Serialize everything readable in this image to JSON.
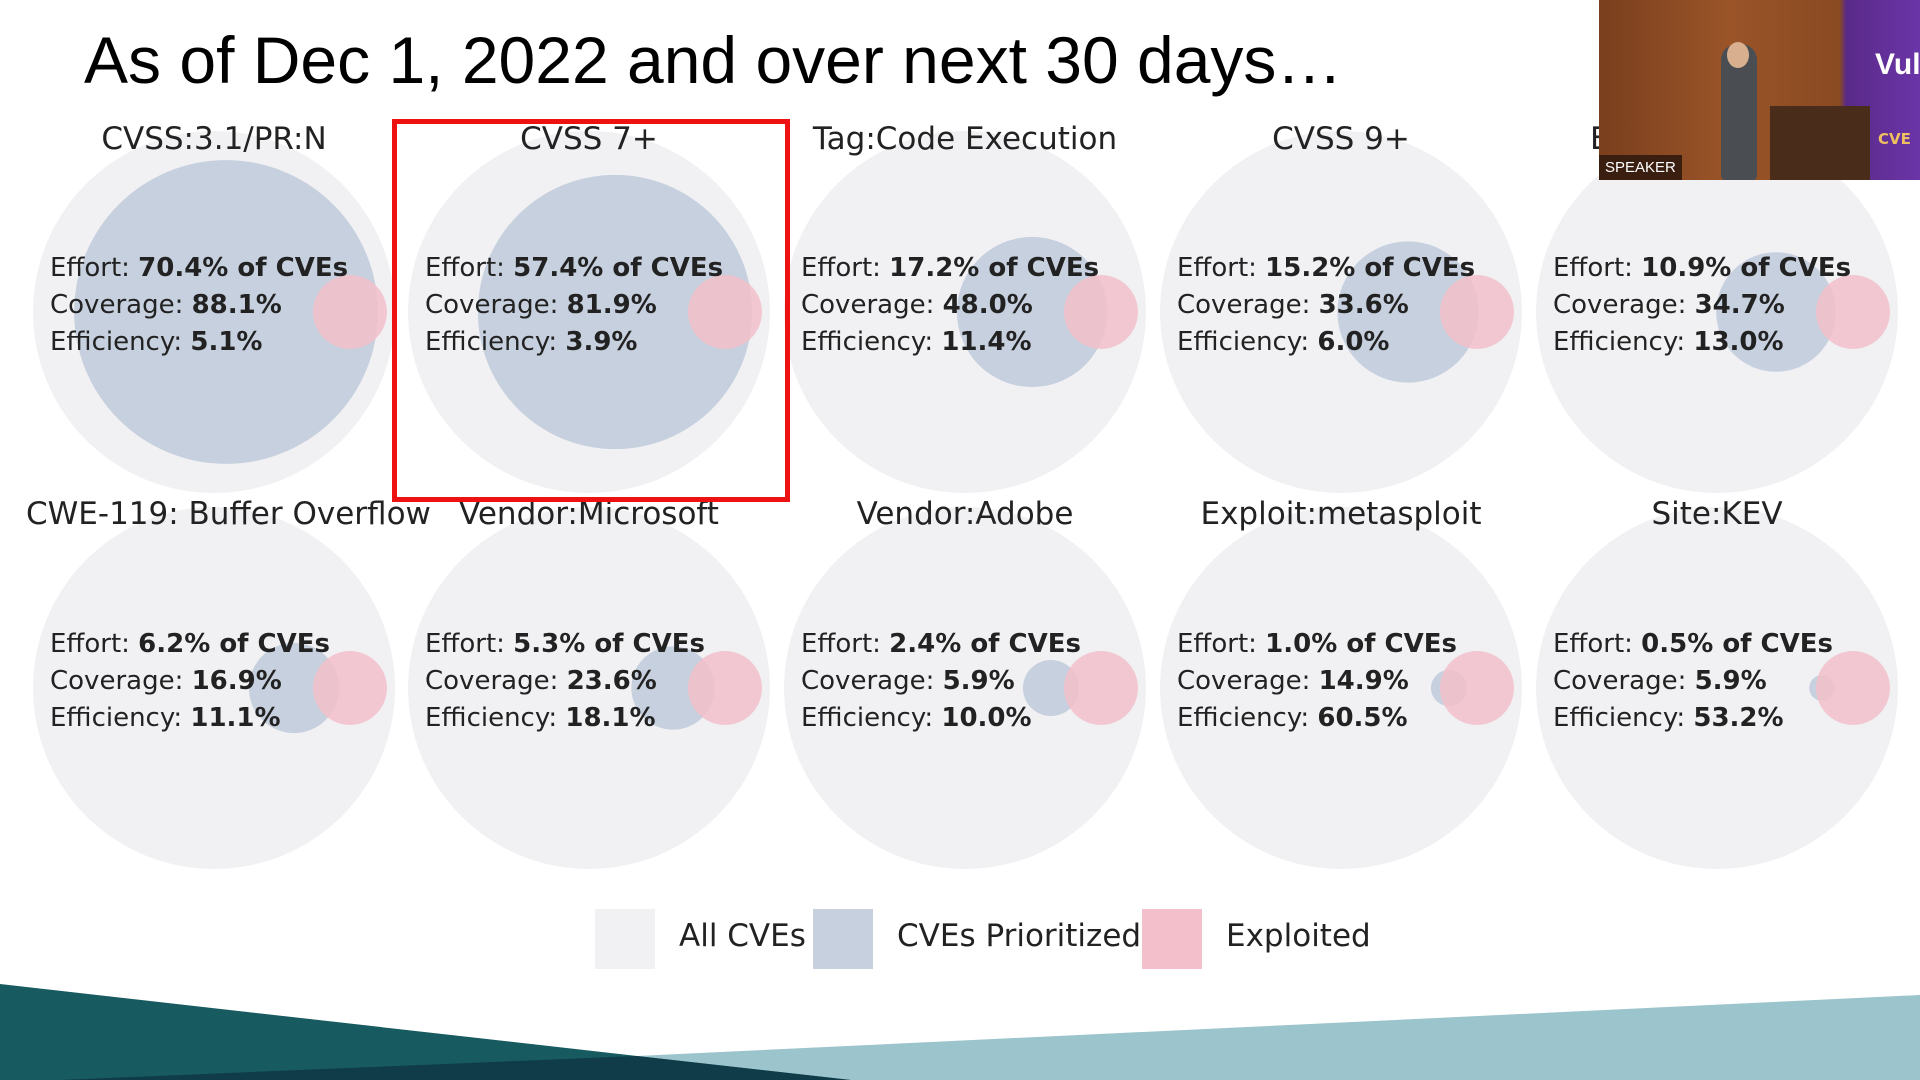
{
  "slide": {
    "title": "As of Dec 1, 2022 and over next 30 days…",
    "labels": {
      "effort": "Effort: ",
      "coverage": "Coverage: ",
      "efficiency": "Efficiency: ",
      "of_cves": " of CVEs"
    },
    "highlighted_panel": "CVSS 7+",
    "panels": [
      {
        "title": "CVSS:3.1/PR:N",
        "effort": "70.4%",
        "coverage": "88.1%",
        "efficiency": "5.1%"
      },
      {
        "title": "CVSS 7+",
        "effort": "57.4%",
        "coverage": "81.9%",
        "efficiency": "3.9%"
      },
      {
        "title": "Tag:Code Execution",
        "effort": "17.2%",
        "coverage": "48.0%",
        "efficiency": "11.4%"
      },
      {
        "title": "CVSS 9+",
        "effort": "15.2%",
        "coverage": "33.6%",
        "efficiency": "6.0%"
      },
      {
        "title": "E",
        "effort": "10.9%",
        "coverage": "34.7%",
        "efficiency": "13.0%"
      },
      {
        "title": "CWE-119: Buffer Overflow",
        "effort": "6.2%",
        "coverage": "16.9%",
        "efficiency": "11.1%"
      },
      {
        "title": "Vendor:Microsoft",
        "effort": "5.3%",
        "coverage": "23.6%",
        "efficiency": "18.1%"
      },
      {
        "title": "Vendor:Adobe",
        "effort": "2.4%",
        "coverage": "5.9%",
        "efficiency": "10.0%"
      },
      {
        "title": "Exploit:metasploit",
        "effort": "1.0%",
        "coverage": "14.9%",
        "efficiency": "60.5%"
      },
      {
        "title": "Site:KEV",
        "effort": "0.5%",
        "coverage": "5.9%",
        "efficiency": "53.2%"
      }
    ],
    "legend": [
      {
        "label": "All CVEs",
        "color": "#f1f1f3"
      },
      {
        "label": "CVEs Prioritized",
        "color": "#c6d0de"
      },
      {
        "label": "Exploited",
        "color": "#f2bfca"
      }
    ],
    "colors": {
      "highlight": "#ee1111",
      "footer_dark": "#175a60",
      "footer_darker": "#0f3c48",
      "footer_light": "#9cc4cc"
    }
  },
  "video": {
    "tag": "SPEAKER",
    "banner_text": "Vuln",
    "logo": "CVE"
  }
}
